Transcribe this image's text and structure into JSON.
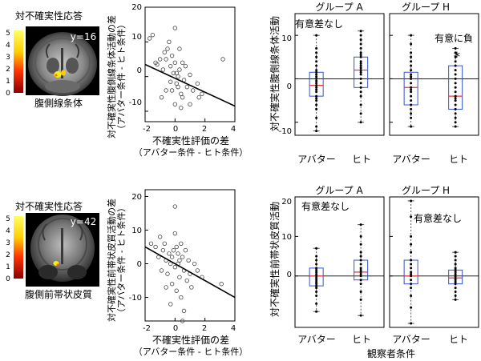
{
  "panels": [
    {
      "brain": {
        "title": "対不確実性応答",
        "coord": "y=16",
        "region": "腹側線条体",
        "colorbar_ticks": [
          "5",
          "4",
          "3",
          "2",
          "1",
          "0"
        ],
        "colors": {
          "high": "#ffff00",
          "mid": "#ff3300",
          "low": "#8b0000"
        }
      },
      "scatter": {
        "ylabel_main": "対不確実性腹側線条体活動の差",
        "ylabel_sub": "（アバター条件 - ヒト条件）",
        "xlabel_main": "不確実性評価の差",
        "xlabel_sub": "（アバター条件 - ヒト条件）",
        "xticks": [
          "-2",
          "0",
          "2",
          "4"
        ],
        "yticks": [
          "20",
          "10",
          "0",
          "-10"
        ]
      },
      "box": {
        "ylabel": "対不確実性腹側線条体活動",
        "yticks": [
          "10",
          "0",
          "-10"
        ],
        "groups": [
          {
            "title": "グループ A",
            "annotation": "有意差なし",
            "star": "",
            "categories": [
              "アバター",
              "ヒト"
            ]
          },
          {
            "title": "グループ H",
            "annotation": "有意に負",
            "star": "*",
            "categories": [
              "アバター",
              "ヒト"
            ]
          }
        ]
      }
    },
    {
      "brain": {
        "title": "対不確実性応答",
        "coord": "y=42",
        "region": "腹側前帯状皮質",
        "colorbar_ticks": [
          "5",
          "4",
          "3",
          "2",
          "1",
          "0"
        ],
        "colors": {
          "high": "#ffff00",
          "mid": "#ff3300",
          "low": "#8b0000"
        }
      },
      "scatter": {
        "ylabel_main": "対不確実性前帯状皮質活動の差",
        "ylabel_sub": "（アバター条件 - ヒト条件）",
        "xlabel_main": "不確実性評価の差",
        "xlabel_sub": "（アバター条件 - ヒト条件）",
        "xticks": [
          "-2",
          "0",
          "2",
          "4"
        ],
        "yticks": [
          "20",
          "10",
          "0",
          "-10"
        ]
      },
      "box": {
        "ylabel": "対不確実性前帯状皮質活動",
        "yticks": [
          "20",
          "10",
          "0"
        ],
        "xlabel": "観察者条件",
        "groups": [
          {
            "title": "グループ A",
            "annotation": "有意差なし",
            "star": "",
            "categories": [
              "アバター",
              "ヒト"
            ]
          },
          {
            "title": "グループ H",
            "annotation": "有意差なし",
            "star": "",
            "categories": [
              "アバター",
              "ヒト"
            ]
          }
        ]
      }
    }
  ],
  "chart_data": [
    {
      "type": "scatter",
      "xlim": [
        -2,
        4
      ],
      "ylim": [
        -13,
        20
      ],
      "points": [
        [
          -1.7,
          11
        ],
        [
          -1.5,
          12
        ],
        [
          -1.3,
          4
        ],
        [
          -1.2,
          3.5
        ],
        [
          -1.0,
          5
        ],
        [
          -0.8,
          2
        ],
        [
          -0.7,
          7
        ],
        [
          -0.6,
          5
        ],
        [
          -0.5,
          8
        ],
        [
          -0.4,
          10
        ],
        [
          -0.3,
          3
        ],
        [
          -0.2,
          6
        ],
        [
          -0.2,
          -4
        ],
        [
          -0.1,
          1
        ],
        [
          0.0,
          14
        ],
        [
          0.0,
          4
        ],
        [
          0.1,
          1
        ],
        [
          0.1,
          -2
        ],
        [
          0.2,
          0
        ],
        [
          0.2,
          -3
        ],
        [
          0.3,
          8
        ],
        [
          0.3,
          2
        ],
        [
          0.4,
          -5
        ],
        [
          0.5,
          4
        ],
        [
          0.5,
          -6
        ],
        [
          0.6,
          -1
        ],
        [
          0.7,
          3
        ],
        [
          0.8,
          -3
        ],
        [
          1.0,
          -8
        ],
        [
          1.2,
          -4
        ],
        [
          1.5,
          -2
        ],
        [
          1.6,
          -6
        ],
        [
          1.8,
          -5
        ],
        [
          0.0,
          -8
        ],
        [
          -0.6,
          -4
        ],
        [
          -0.9,
          -6
        ],
        [
          0.4,
          -9
        ],
        [
          1.0,
          0.5
        ],
        [
          -0.3,
          -1.5
        ],
        [
          3.2,
          5
        ]
      ],
      "regression": {
        "x": [
          -2,
          4
        ],
        "y": [
          3.5,
          -8.5
        ]
      }
    },
    {
      "type": "box",
      "ylim": [
        -13,
        15
      ],
      "groups": [
        {
          "name": "グループ A",
          "boxes": [
            {
              "category": "アバター",
              "q1": -4,
              "median": -1.5,
              "q3": 1.5,
              "whisker_low": -12,
              "whisker_high": 10,
              "points": [
                -12,
                -11,
                -9,
                -7,
                -6,
                -5,
                -4.5,
                -4,
                -3,
                -2.5,
                -2,
                -1.5,
                -1,
                -0.5,
                0,
                0.5,
                1,
                1.5,
                2,
                3,
                4,
                5,
                6,
                7,
                10
              ]
            },
            {
              "category": "ヒト",
              "q1": -2,
              "median": 2,
              "q3": 5,
              "whisker_low": -10,
              "whisker_high": 11,
              "points": [
                -10,
                -8,
                -6,
                -4,
                -3,
                -2,
                -1,
                0,
                1,
                1.5,
                2,
                2.5,
                3,
                3.5,
                4,
                5,
                5.5,
                6,
                7,
                8,
                9,
                10,
                11
              ]
            }
          ]
        },
        {
          "name": "グループ H",
          "boxes": [
            {
              "category": "アバター",
              "q1": -6,
              "median": -2,
              "q3": 1.5,
              "whisker_low": -11,
              "whisker_high": 10,
              "points": [
                -11,
                -9,
                -8,
                -7,
                -6,
                -5,
                -4,
                -3,
                -2.5,
                -2,
                -1,
                0,
                0.5,
                1,
                2,
                3,
                4,
                5,
                6,
                8,
                10
              ]
            },
            {
              "category": "ヒト",
              "q1": -7,
              "median": -4,
              "q3": 3,
              "whisker_low": -11,
              "whisker_high": 7,
              "points": [
                -11,
                -10,
                -9,
                -8,
                -7,
                -6,
                -5,
                -4.5,
                -4,
                -3,
                -2,
                -1,
                0,
                1,
                2,
                3,
                4,
                5,
                6,
                7
              ]
            }
          ]
        }
      ]
    },
    {
      "type": "scatter",
      "xlim": [
        -2,
        4
      ],
      "ylim": [
        -17,
        22
      ],
      "points": [
        [
          -1.6,
          6
        ],
        [
          -1.3,
          5
        ],
        [
          -1.1,
          2
        ],
        [
          -1.0,
          8
        ],
        [
          -0.9,
          -2
        ],
        [
          -0.8,
          4
        ],
        [
          -0.7,
          6
        ],
        [
          -0.6,
          1
        ],
        [
          -0.5,
          -3
        ],
        [
          -0.4,
          3
        ],
        [
          -0.3,
          0
        ],
        [
          -0.2,
          2
        ],
        [
          -0.2,
          -6
        ],
        [
          -0.1,
          4
        ],
        [
          0.0,
          17
        ],
        [
          0.0,
          9
        ],
        [
          0.0,
          -1
        ],
        [
          0.1,
          5
        ],
        [
          0.1,
          -8
        ],
        [
          0.2,
          0
        ],
        [
          0.2,
          3
        ],
        [
          0.3,
          1
        ],
        [
          0.3,
          -4
        ],
        [
          0.4,
          6
        ],
        [
          0.4,
          -10
        ],
        [
          0.5,
          2
        ],
        [
          0.6,
          -2
        ],
        [
          0.6,
          -14
        ],
        [
          0.7,
          4
        ],
        [
          0.8,
          -5
        ],
        [
          0.9,
          1
        ],
        [
          1.0,
          -3
        ],
        [
          1.1,
          -7
        ],
        [
          1.3,
          0
        ],
        [
          1.5,
          -2
        ],
        [
          1.8,
          -4
        ],
        [
          -0.3,
          -12
        ],
        [
          0.5,
          -17
        ],
        [
          3.1,
          -6
        ],
        [
          -0.6,
          -7
        ]
      ],
      "regression": {
        "x": [
          -2,
          4
        ],
        "y": [
          5,
          -10
        ]
      }
    },
    {
      "type": "box",
      "ylim": [
        -13,
        20
      ],
      "groups": [
        {
          "name": "グループ A",
          "boxes": [
            {
              "category": "アバター",
              "q1": -2.5,
              "median": 0,
              "q3": 2,
              "whisker_low": -9,
              "whisker_high": 7,
              "points": [
                -9,
                -7,
                -5,
                -4,
                -3,
                -2.5,
                -2,
                -1.5,
                -1,
                -0.5,
                0,
                0.5,
                1,
                1.5,
                2,
                3,
                4,
                5,
                7
              ]
            },
            {
              "category": "ヒト",
              "q1": -1,
              "median": 1,
              "q3": 4,
              "whisker_low": -10,
              "whisker_high": 13,
              "points": [
                -10,
                -6,
                -4,
                -2,
                -1,
                0,
                0.5,
                1,
                1.5,
                2,
                3,
                4,
                5,
                6,
                8,
                10,
                13
              ]
            }
          ]
        },
        {
          "name": "グループ H",
          "boxes": [
            {
              "category": "アバター",
              "q1": -2,
              "median": 0,
              "q3": 4,
              "whisker_low": -12,
              "whisker_high": 19,
              "points": [
                -12,
                -8,
                -5,
                -3,
                -2,
                -1,
                0,
                0.5,
                1,
                2,
                3,
                4,
                6,
                8,
                10,
                15,
                19
              ]
            },
            {
              "category": "ヒト",
              "q1": -2,
              "median": -0.5,
              "q3": 1.5,
              "whisker_low": -6,
              "whisker_high": 6,
              "points": [
                -6,
                -5,
                -4,
                -3,
                -2,
                -1.5,
                -1,
                -0.5,
                0,
                0.5,
                1,
                1.5,
                2,
                3,
                4,
                5,
                6
              ]
            }
          ]
        }
      ]
    }
  ]
}
